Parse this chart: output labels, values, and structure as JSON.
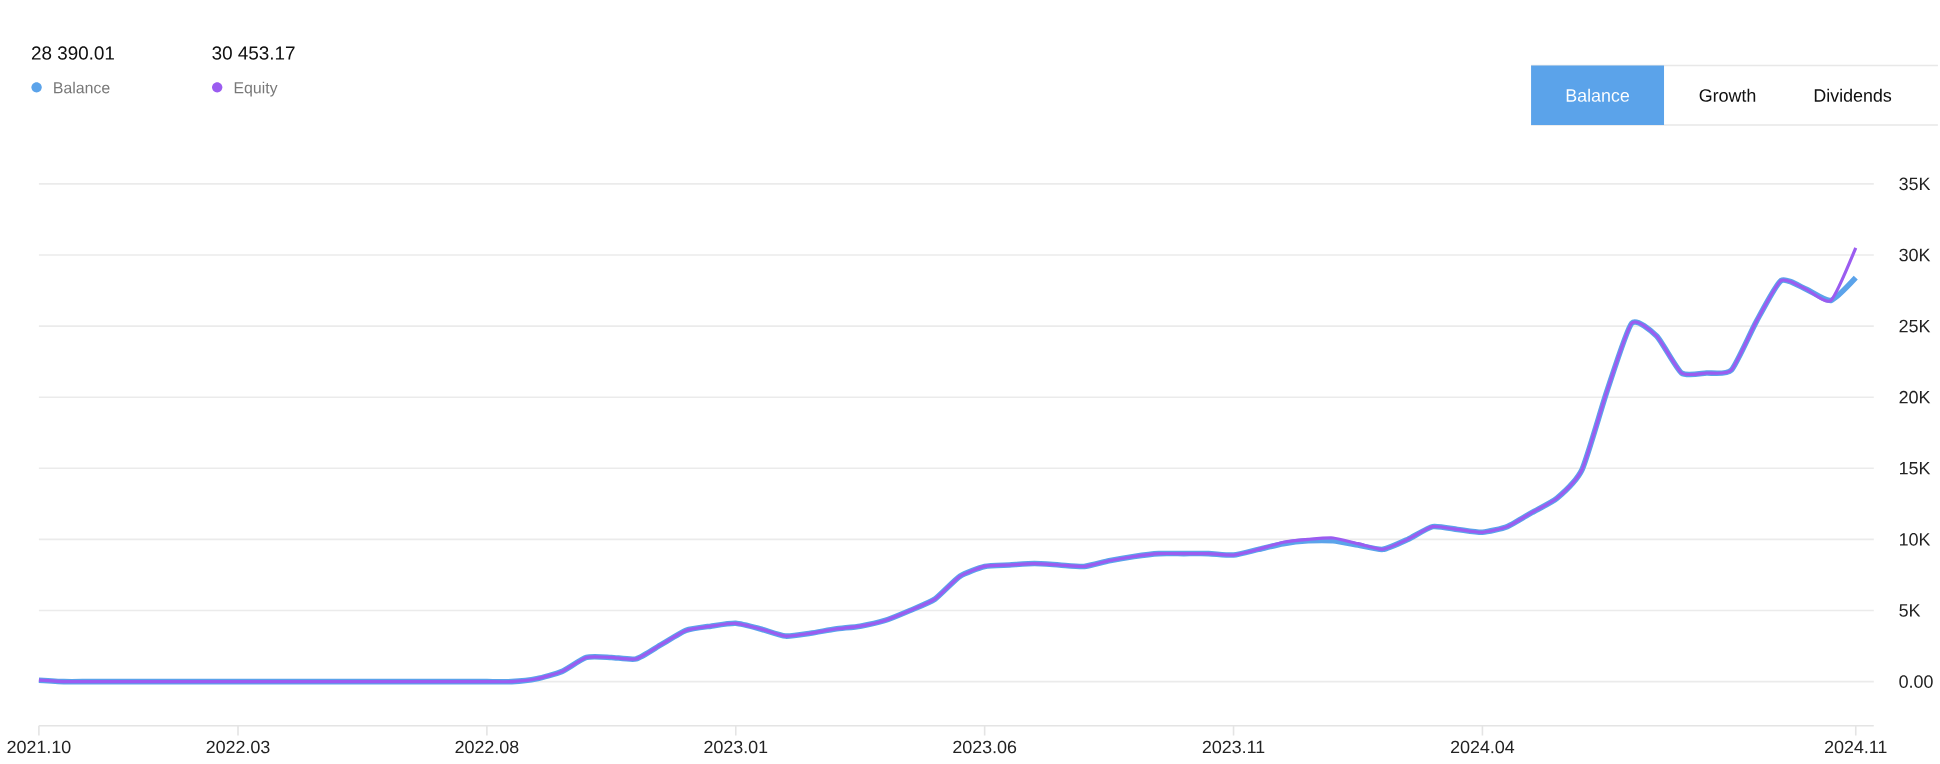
{
  "chart_data": {
    "type": "line",
    "categories": [
      "2021.10",
      null,
      null,
      null,
      null,
      null,
      null,
      null,
      "2022.03",
      null,
      null,
      null,
      null,
      null,
      null,
      null,
      null,
      null,
      "2022.08",
      null,
      null,
      null,
      null,
      null,
      null,
      null,
      null,
      null,
      "2023.01",
      null,
      null,
      null,
      null,
      null,
      null,
      null,
      null,
      null,
      "2023.06",
      null,
      null,
      null,
      null,
      null,
      null,
      null,
      null,
      null,
      "2023.11",
      null,
      null,
      null,
      null,
      null,
      null,
      null,
      null,
      null,
      "2024.04",
      null,
      null,
      null,
      null,
      null,
      null,
      null,
      null,
      null,
      null,
      null,
      null,
      null,
      null,
      "2024.11"
    ],
    "series": [
      {
        "name": "Balance",
        "color": "#5ba3ea",
        "values": [
          100,
          0,
          0,
          0,
          0,
          0,
          0,
          0,
          0,
          0,
          0,
          0,
          0,
          0,
          0,
          0,
          0,
          0,
          0,
          0,
          200,
          700,
          1700,
          1700,
          1600,
          2600,
          3600,
          3900,
          4100,
          3700,
          3200,
          3400,
          3700,
          3900,
          4300,
          5000,
          5800,
          7400,
          8100,
          8200,
          8300,
          8200,
          8100,
          8500,
          8800,
          9000,
          9000,
          9000,
          8900,
          9300,
          9700,
          9900,
          9900,
          9600,
          9300,
          10000,
          10900,
          10700,
          10500,
          10900,
          11900,
          12900,
          14900,
          20400,
          25200,
          24300,
          21700,
          21700,
          21900,
          25300,
          28200,
          27600,
          26800,
          28400
        ]
      },
      {
        "name": "Equity",
        "color": "#9b5cf0",
        "values": [
          100,
          0,
          0,
          0,
          0,
          0,
          0,
          0,
          0,
          0,
          0,
          0,
          0,
          0,
          0,
          0,
          0,
          0,
          0,
          0,
          200,
          700,
          1700,
          1700,
          1600,
          2600,
          3600,
          3900,
          4100,
          3700,
          3200,
          3400,
          3700,
          3900,
          4300,
          5000,
          5800,
          7400,
          8100,
          8200,
          8300,
          8200,
          8100,
          8500,
          8800,
          9000,
          9000,
          9000,
          8900,
          9300,
          9800,
          10000,
          10100,
          9700,
          9300,
          10000,
          10900,
          10700,
          10500,
          10900,
          11900,
          12900,
          14900,
          20400,
          25200,
          24300,
          21700,
          21700,
          21900,
          25300,
          28200,
          27600,
          26800,
          30500
        ]
      }
    ],
    "ylim": [
      -3100,
      35000
    ],
    "yticks": [
      {
        "value": 0,
        "label": "0.00"
      },
      {
        "value": 5000,
        "label": "5K"
      },
      {
        "value": 10000,
        "label": "10K"
      },
      {
        "value": 15000,
        "label": "15K"
      },
      {
        "value": 20000,
        "label": "20K"
      },
      {
        "value": 25000,
        "label": "25K"
      },
      {
        "value": 30000,
        "label": "30K"
      },
      {
        "value": 35000,
        "label": "35K"
      }
    ],
    "grid": "y",
    "legend": "top left",
    "marker": "none",
    "line_style": "solid",
    "annotations": [
      "28 390.01",
      "30 453.17",
      "Balance",
      "Growth",
      "Dividends"
    ]
  }
}
